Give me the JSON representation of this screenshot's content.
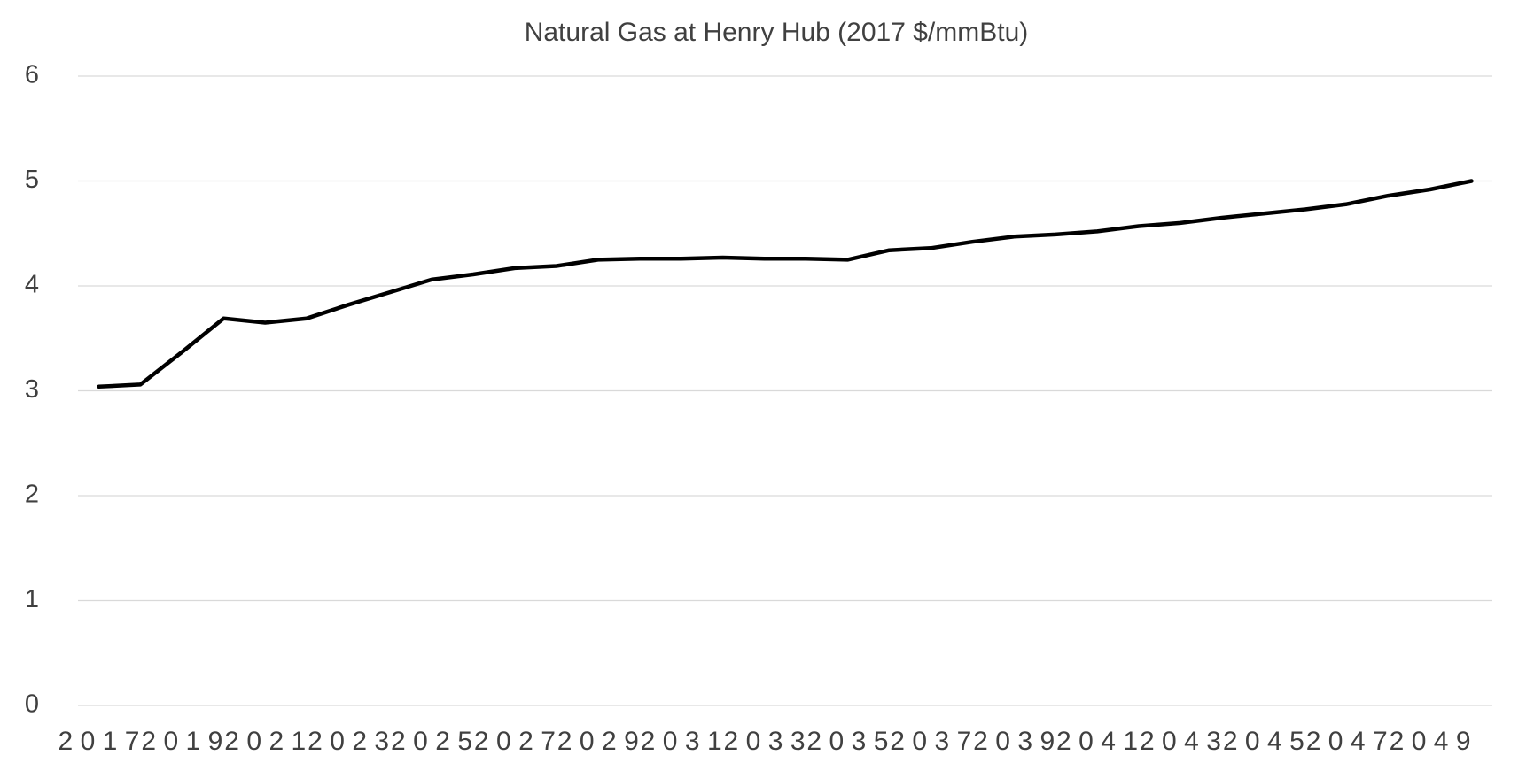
{
  "chart_data": {
    "type": "line",
    "title": "Natural Gas at Henry Hub (2017 $/mmBtu)",
    "categories": [
      "2017",
      null,
      "2019",
      null,
      "2021",
      null,
      "2023",
      null,
      "2025",
      null,
      "2027",
      null,
      "2029",
      null,
      "2031",
      null,
      "2033",
      null,
      "2035",
      null,
      "2037",
      null,
      "2039",
      null,
      "2041",
      null,
      "2043",
      null,
      "2045",
      null,
      "2047",
      null,
      "2049",
      null
    ],
    "values": [
      3.04,
      3.06,
      3.37,
      3.69,
      3.65,
      3.69,
      3.82,
      3.94,
      4.06,
      4.11,
      4.17,
      4.19,
      4.25,
      4.26,
      4.26,
      4.27,
      4.26,
      4.26,
      4.25,
      4.34,
      4.36,
      4.42,
      4.47,
      4.49,
      4.52,
      4.57,
      4.6,
      4.65,
      4.69,
      4.73,
      4.78,
      4.86,
      4.92,
      5.0
    ],
    "color": "#000000",
    "ylim": [
      0,
      6
    ],
    "yticks": [
      0,
      1,
      2,
      3,
      4,
      5,
      6
    ],
    "grid": true
  }
}
